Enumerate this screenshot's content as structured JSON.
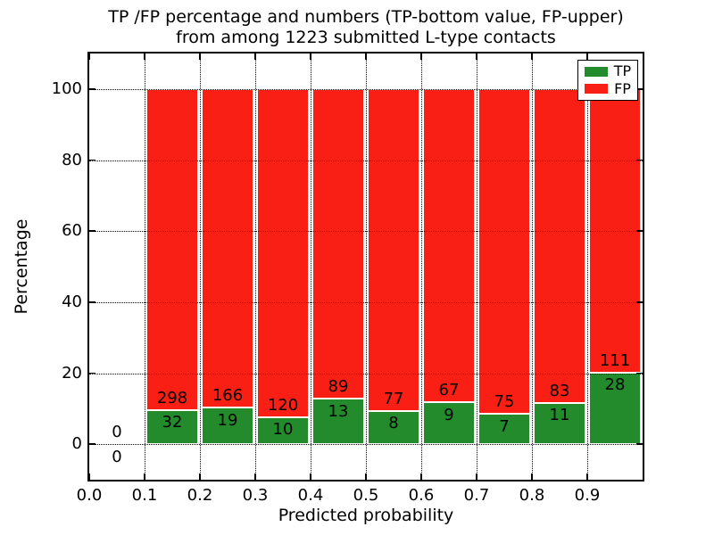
{
  "chart_data": {
    "type": "bar",
    "stacked": true,
    "title_line1": "TP /FP percentage and numbers (TP-bottom value, FP-upper)",
    "title_line2": "from among 1223 submitted L-type contacts",
    "xlabel": "Predicted probability",
    "ylabel": "Percentage",
    "total_contacts": 1223,
    "xlim": [
      0.0,
      1.0
    ],
    "ylim": [
      -10,
      110
    ],
    "x_tick_labels": [
      "0.0",
      "0.1",
      "0.2",
      "0.3",
      "0.4",
      "0.5",
      "0.6",
      "0.7",
      "0.8",
      "0.9"
    ],
    "x_tick_values": [
      0.0,
      0.1,
      0.2,
      0.3,
      0.4,
      0.5,
      0.6,
      0.7,
      0.8,
      0.9
    ],
    "y_tick_values": [
      0,
      20,
      40,
      60,
      80,
      100
    ],
    "grid": "dotted",
    "background": "#ffffff",
    "colors": {
      "tp": "#238b2b",
      "fp": "#fa1f14",
      "bar_edge": "#ffffff",
      "text": "#000000"
    },
    "legend": {
      "position": "upper right",
      "entries": [
        {
          "label": "TP",
          "color": "#238b2b"
        },
        {
          "label": "FP",
          "color": "#fa1f14"
        }
      ]
    },
    "bins": [
      {
        "x_start": 0.0,
        "x_end": 0.1,
        "tp_count": 0,
        "fp_count": 0,
        "tp_pct": 0,
        "fp_pct": 0
      },
      {
        "x_start": 0.1,
        "x_end": 0.2,
        "tp_count": 32,
        "fp_count": 298,
        "tp_pct": 9.7,
        "fp_pct": 90.3
      },
      {
        "x_start": 0.2,
        "x_end": 0.3,
        "tp_count": 19,
        "fp_count": 166,
        "tp_pct": 10.27,
        "fp_pct": 89.73
      },
      {
        "x_start": 0.3,
        "x_end": 0.4,
        "tp_count": 10,
        "fp_count": 120,
        "tp_pct": 7.69,
        "fp_pct": 92.31
      },
      {
        "x_start": 0.4,
        "x_end": 0.5,
        "tp_count": 13,
        "fp_count": 89,
        "tp_pct": 12.75,
        "fp_pct": 87.25
      },
      {
        "x_start": 0.5,
        "x_end": 0.6,
        "tp_count": 8,
        "fp_count": 77,
        "tp_pct": 9.41,
        "fp_pct": 90.59
      },
      {
        "x_start": 0.6,
        "x_end": 0.7,
        "tp_count": 9,
        "fp_count": 67,
        "tp_pct": 11.84,
        "fp_pct": 88.16
      },
      {
        "x_start": 0.7,
        "x_end": 0.8,
        "tp_count": 7,
        "fp_count": 75,
        "tp_pct": 8.54,
        "fp_pct": 91.46
      },
      {
        "x_start": 0.8,
        "x_end": 0.9,
        "tp_count": 11,
        "fp_count": 83,
        "tp_pct": 11.7,
        "fp_pct": 88.3
      },
      {
        "x_start": 0.9,
        "x_end": 1.0,
        "tp_count": 28,
        "fp_count": 111,
        "tp_pct": 20.14,
        "fp_pct": 79.86
      }
    ]
  }
}
